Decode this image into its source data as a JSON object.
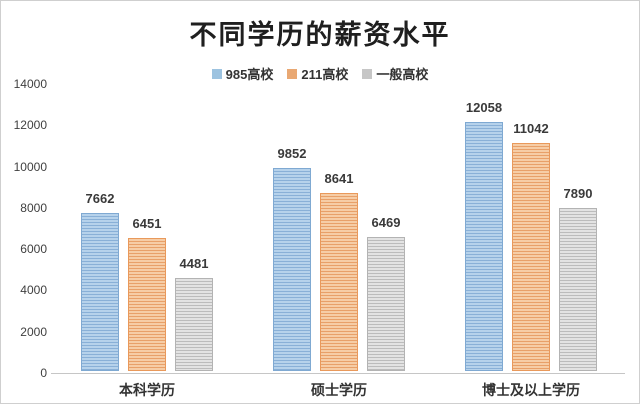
{
  "page": {
    "background": "#ffffff",
    "border_color": "#cfcfcf"
  },
  "chart_data": {
    "type": "bar",
    "title": "不同学历的薪资水平",
    "categories": [
      "本科学历",
      "硕士学历",
      "博士及以上学历"
    ],
    "series": [
      {
        "name": "985高校",
        "values": [
          7662,
          9852,
          12058
        ],
        "legend_color": "#9dc3e0",
        "fill_light": "#b6d2eb",
        "stripe": "#89b0d7",
        "border": "#7fa9d2"
      },
      {
        "name": "211高校",
        "values": [
          6451,
          8641,
          11042
        ],
        "legend_color": "#e9a873",
        "fill_light": "#f6cda6",
        "stripe": "#e8a069",
        "border": "#e9995b"
      },
      {
        "name": "一般高校",
        "values": [
          4481,
          6469,
          7890
        ],
        "legend_color": "#c6c6c6",
        "fill_light": "#e3e3e3",
        "stripe": "#bcbcbc",
        "border": "#b3b3b3"
      }
    ],
    "ylim": [
      0,
      14000
    ],
    "yticks": [
      0,
      2000,
      4000,
      6000,
      8000,
      10000,
      12000,
      14000
    ],
    "grid": false,
    "legend_position": "top",
    "bar_labels": true,
    "axis_line_color": "#c6c6c6"
  }
}
